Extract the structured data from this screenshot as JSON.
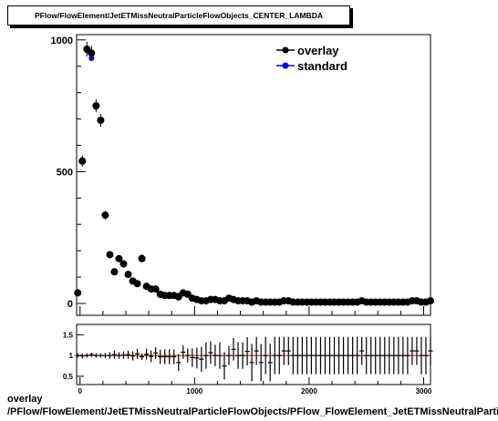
{
  "title": "PFlow/FlowElement/JetETMissNeutralParticleFlowObjects_CENTER_LAMBDA",
  "caption_line1": "overlay",
  "caption_line2": "/PFlow/FlowElement/JetETMissNeutralParticleFlowObjects/PFlow_FlowElement_JetETMissNeutralParticleFlowObjects_CENTER_LAMBDA",
  "colors": {
    "overlay": "#000000",
    "standard": "#0000ff",
    "ratio_line": "#cc0000"
  },
  "chart_data": [
    {
      "type": "scatter",
      "xlim": [
        -30,
        3060
      ],
      "ylim": [
        -45,
        1020
      ],
      "x_ticks": [
        "0",
        "1000",
        "2000",
        "3000"
      ],
      "y_ticks": [
        "0",
        "500",
        "1000"
      ],
      "y_tick_values": [
        0,
        500,
        1000
      ],
      "x_tick_values": [
        0,
        1000,
        2000,
        3000
      ],
      "legend": {
        "placement": "top-right",
        "entries": [
          "overlay",
          "standard"
        ]
      },
      "x": [
        -20,
        20,
        60,
        100,
        140,
        180,
        220,
        260,
        300,
        340,
        380,
        420,
        460,
        500,
        540,
        580,
        620,
        660,
        700,
        740,
        780,
        820,
        860,
        900,
        940,
        980,
        1020,
        1060,
        1100,
        1140,
        1180,
        1220,
        1260,
        1300,
        1340,
        1380,
        1420,
        1460,
        1500,
        1540,
        1580,
        1620,
        1660,
        1700,
        1740,
        1780,
        1820,
        1860,
        1900,
        1940,
        1980,
        2020,
        2060,
        2100,
        2140,
        2180,
        2220,
        2260,
        2300,
        2340,
        2380,
        2420,
        2460,
        2500,
        2540,
        2580,
        2620,
        2660,
        2700,
        2740,
        2780,
        2820,
        2860,
        2900,
        2940,
        2980,
        3020,
        3060
      ],
      "series": [
        {
          "name": "overlay",
          "values": [
            40,
            540,
            965,
            950,
            750,
            695,
            335,
            185,
            120,
            170,
            150,
            110,
            85,
            75,
            170,
            65,
            55,
            55,
            35,
            30,
            30,
            30,
            25,
            40,
            35,
            20,
            15,
            10,
            10,
            15,
            15,
            10,
            10,
            20,
            15,
            10,
            10,
            10,
            5,
            10,
            5,
            5,
            5,
            5,
            5,
            10,
            10,
            5,
            5,
            5,
            5,
            5,
            5,
            5,
            5,
            5,
            5,
            5,
            5,
            5,
            5,
            5,
            10,
            5,
            5,
            5,
            5,
            5,
            5,
            5,
            5,
            5,
            5,
            10,
            10,
            5,
            5,
            10
          ]
        },
        {
          "name": "standard",
          "values": [
            40,
            545,
            960,
            930,
            745,
            695,
            335,
            185,
            118,
            170,
            148,
            108,
            86,
            72,
            175,
            63,
            56,
            52,
            36,
            31,
            31,
            31,
            30,
            37,
            35,
            21,
            16,
            11,
            10,
            14,
            15,
            10,
            10,
            20,
            13,
            10,
            10,
            9,
            6,
            9,
            6,
            5,
            6,
            5,
            5,
            9,
            9,
            5,
            5,
            5,
            5,
            5,
            5,
            5,
            5,
            5,
            5,
            5,
            5,
            5,
            5,
            5,
            9,
            5,
            5,
            5,
            5,
            5,
            5,
            5,
            5,
            5,
            5,
            9,
            9,
            5,
            5,
            9
          ]
        }
      ]
    },
    {
      "type": "scatter",
      "xlim": [
        -30,
        3060
      ],
      "ylim": [
        0.3,
        1.75
      ],
      "x_ticks": [
        "0",
        "1000",
        "2000",
        "3000"
      ],
      "y_ticks": [
        "0.5",
        "1",
        "1.5"
      ],
      "y_tick_values": [
        0.5,
        1.0,
        1.5
      ],
      "x_tick_values": [
        0,
        1000,
        2000,
        3000
      ],
      "reference_line": 1.0,
      "x": [
        -20,
        20,
        60,
        100,
        140,
        180,
        220,
        260,
        300,
        340,
        380,
        420,
        460,
        500,
        540,
        580,
        620,
        660,
        700,
        740,
        780,
        820,
        860,
        900,
        940,
        980,
        1020,
        1060,
        1100,
        1140,
        1180,
        1220,
        1260,
        1300,
        1340,
        1380,
        1420,
        1460,
        1500,
        1540,
        1580,
        1620,
        1660,
        1700,
        1740,
        1780,
        1820,
        1860,
        1900,
        1940,
        1980,
        2020,
        2060,
        2100,
        2140,
        2180,
        2220,
        2260,
        2300,
        2340,
        2380,
        2420,
        2460,
        2500,
        2540,
        2580,
        2620,
        2660,
        2700,
        2740,
        2780,
        2820,
        2860,
        2900,
        2940,
        2980,
        3020,
        3060
      ],
      "values": [
        1.0,
        0.99,
        1.0,
        1.02,
        1.0,
        1.0,
        1.0,
        1.0,
        1.02,
        1.0,
        1.01,
        1.02,
        0.99,
        1.04,
        0.97,
        1.03,
        0.98,
        1.06,
        0.97,
        0.97,
        0.97,
        0.97,
        0.83,
        1.08,
        1.0,
        0.95,
        0.94,
        0.91,
        1.0,
        1.07,
        1.0,
        1.0,
        0.75,
        1.0,
        1.15,
        1.0,
        1.0,
        1.1,
        0.83,
        1.11,
        0.83,
        1.0,
        0.83,
        1.0,
        1.0,
        1.11,
        1.11,
        1.0,
        1.0,
        1.0,
        1.0,
        1.0,
        1.0,
        1.0,
        1.0,
        1.0,
        1.0,
        1.0,
        1.0,
        1.0,
        1.0,
        1.0,
        1.11,
        1.0,
        1.0,
        1.0,
        1.0,
        1.0,
        1.0,
        1.0,
        1.0,
        1.0,
        1.0,
        1.11,
        1.11,
        1.0,
        1.0,
        1.11
      ],
      "errors": [
        0.05,
        0.06,
        0.05,
        0.05,
        0.05,
        0.05,
        0.06,
        0.08,
        0.1,
        0.08,
        0.09,
        0.1,
        0.11,
        0.12,
        0.08,
        0.13,
        0.14,
        0.14,
        0.17,
        0.18,
        0.18,
        0.18,
        0.2,
        0.16,
        0.17,
        0.22,
        0.25,
        0.3,
        0.32,
        0.27,
        0.26,
        0.32,
        0.33,
        0.23,
        0.27,
        0.32,
        0.32,
        0.34,
        0.45,
        0.34,
        0.45,
        0.45,
        0.45,
        0.45,
        0.45,
        0.34,
        0.34,
        0.45,
        0.45,
        0.45,
        0.45,
        0.45,
        0.45,
        0.45,
        0.45,
        0.45,
        0.45,
        0.45,
        0.45,
        0.45,
        0.45,
        0.45,
        0.34,
        0.45,
        0.45,
        0.45,
        0.45,
        0.45,
        0.45,
        0.45,
        0.45,
        0.45,
        0.45,
        0.34,
        0.34,
        0.45,
        0.45,
        0.34
      ]
    }
  ]
}
